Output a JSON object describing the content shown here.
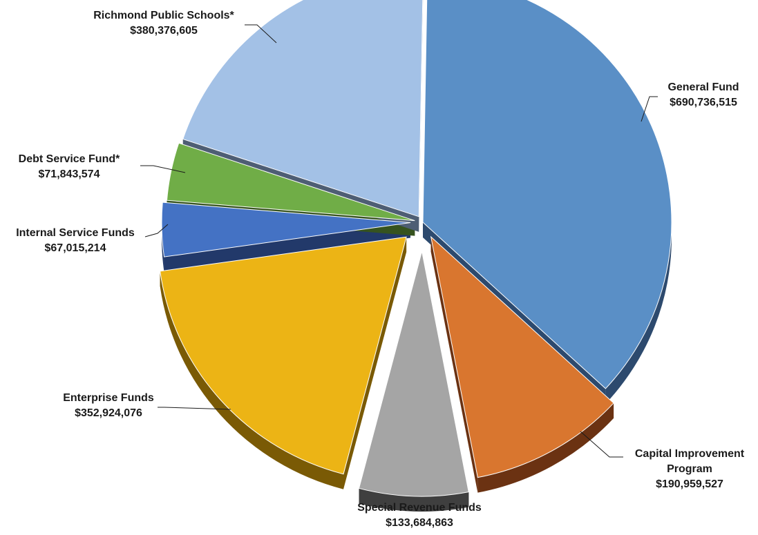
{
  "chart_data": {
    "type": "pie",
    "title": "",
    "slices": [
      {
        "name": "General Fund",
        "label_lines": [
          "General Fund"
        ],
        "value_text": "$690,736,515",
        "value": 690736515,
        "color": "#5A8FC6",
        "side_color": "#2D4A6E"
      },
      {
        "name": "Capital Improvement Program",
        "label_lines": [
          "Capital Improvement",
          "Program"
        ],
        "value_text": "$190,959,527",
        "value": 190959527,
        "color": "#D9762F",
        "side_color": "#6B3212"
      },
      {
        "name": "Special Revenue Funds",
        "label_lines": [
          "Special Revenue Funds"
        ],
        "value_text": "$133,684,863",
        "value": 133684863,
        "color": "#A5A5A5",
        "side_color": "#3F3F3F"
      },
      {
        "name": "Enterprise Funds",
        "label_lines": [
          "Enterprise Funds"
        ],
        "value_text": "$352,924,076",
        "value": 352924076,
        "color": "#ECB415",
        "side_color": "#7A5A05"
      },
      {
        "name": "Internal Service Funds",
        "label_lines": [
          "Internal Service Funds"
        ],
        "value_text": "$67,015,214",
        "value": 67015214,
        "color": "#4472C4",
        "side_color": "#22396A"
      },
      {
        "name": "Debt Service Fund*",
        "label_lines": [
          "Debt Service Fund*"
        ],
        "value_text": "$71,843,574",
        "value": 71843574,
        "color": "#70AD47",
        "side_color": "#36531F"
      },
      {
        "name": "Richmond Public Schools*",
        "label_lines": [
          "Richmond Public Schools*"
        ],
        "value_text": "$380,376,605",
        "value": 380376605,
        "color": "#A3C1E6",
        "side_color": "#4E5E74"
      }
    ]
  }
}
